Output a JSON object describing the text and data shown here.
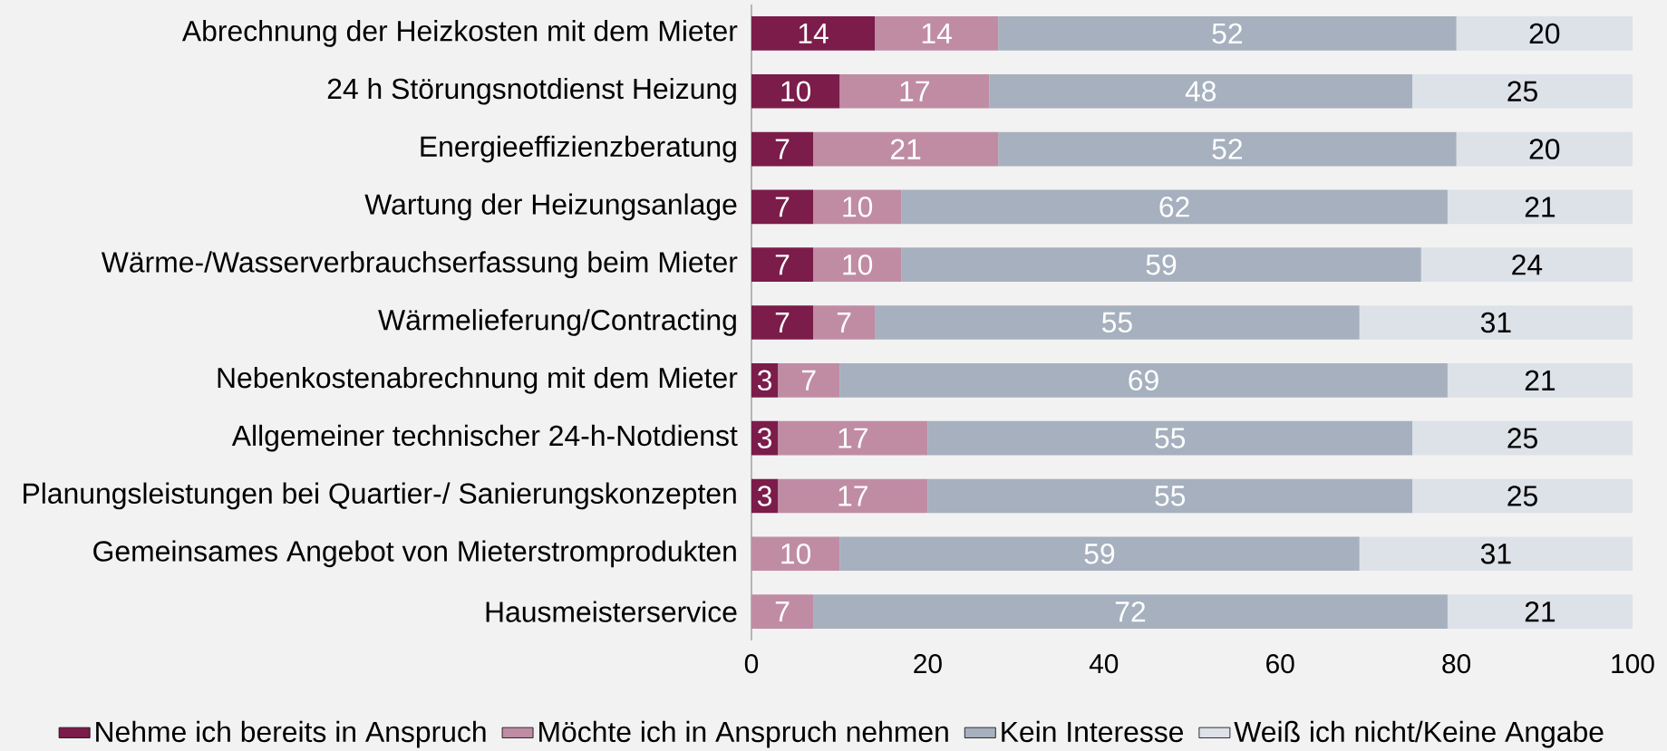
{
  "chart_data": {
    "type": "bar",
    "orientation": "horizontal",
    "stacked": true,
    "legend": "bottom",
    "categories": [
      "Abrechnung der Heizkosten mit dem Mieter",
      "24 h Störungsnotdienst Heizung",
      "Energieeffizienzberatung",
      "Wartung der Heizungsanlage",
      "Wärme-/Wasserverbrauchserfassung beim Mieter",
      "Wärmelieferung/Contracting",
      "Nebenkostenabrechnung mit dem Mieter",
      "Allgemeiner technischer 24-h-Notdienst",
      "Planungsleistungen bei Quartier-/ Sanierungskonzepten",
      "Gemeinsames Angebot von Mieterstromprodukten",
      "Hausmeisterservice"
    ],
    "series": [
      {
        "name": "Nehme ich bereits in Anspruch",
        "color": "#7b1c4a",
        "values": [
          14,
          10,
          7,
          7,
          7,
          7,
          3,
          3,
          3,
          0,
          0
        ],
        "value_labels": [
          "14",
          "10",
          "7",
          "7",
          "7",
          "7",
          "3",
          "3",
          "3",
          null,
          null
        ]
      },
      {
        "name": "Möchte ich in Anspruch nehmen",
        "color": "#c08ca4",
        "values": [
          14,
          17,
          21,
          10,
          10,
          7,
          7,
          17,
          17,
          10,
          7
        ],
        "value_labels": [
          "14",
          "17",
          "21",
          "10",
          "10",
          "7",
          "7",
          "17",
          "17",
          "10",
          "7"
        ]
      },
      {
        "name": "Kein Interesse",
        "color": "#a6b0be",
        "values": [
          52,
          48,
          52,
          62,
          59,
          55,
          69,
          55,
          55,
          59,
          72
        ],
        "value_labels": [
          "52",
          "48",
          "52",
          "62",
          "59",
          "55",
          "69",
          "55",
          "55",
          "59",
          "72"
        ]
      },
      {
        "name": "Weiß ich nicht/Keine Angabe",
        "color": "#dde1e8",
        "values": [
          20,
          25,
          20,
          21,
          24,
          31,
          21,
          25,
          25,
          31,
          21
        ],
        "value_labels": [
          "20",
          "25",
          "20",
          "21",
          "24",
          "31",
          "21",
          "25",
          "25",
          "31",
          "21"
        ]
      }
    ],
    "xlim": [
      0,
      100
    ],
    "xticks": [
      0,
      20,
      40,
      60,
      80,
      100
    ]
  }
}
